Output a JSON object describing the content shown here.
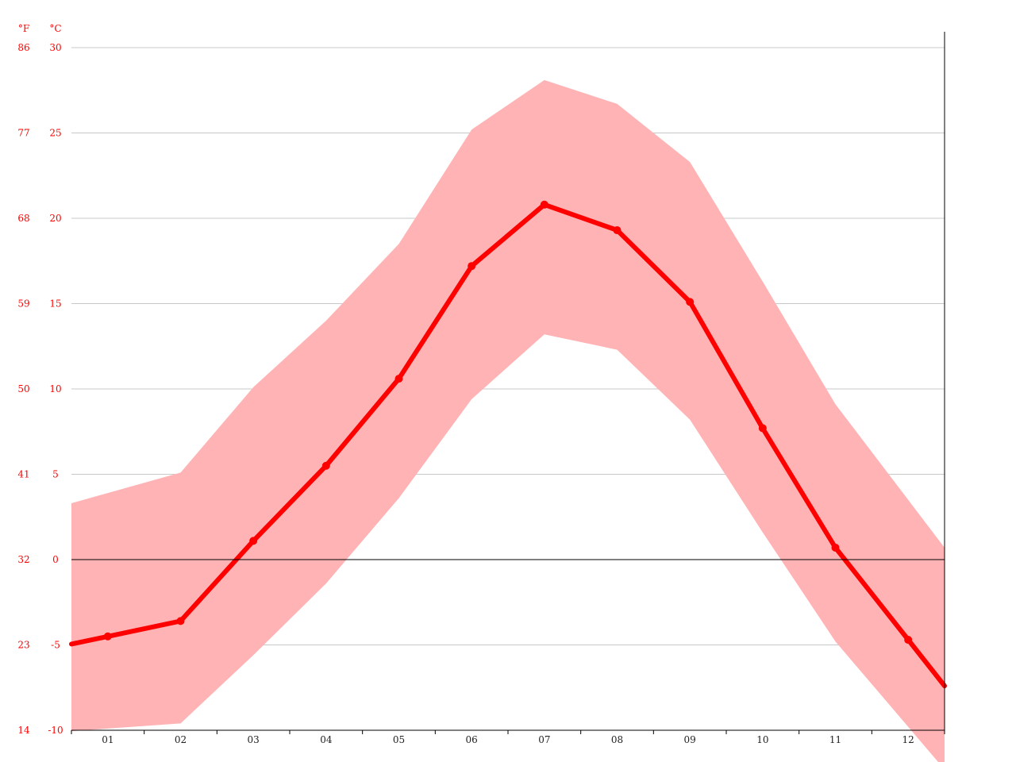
{
  "chart_data": {
    "type": "area",
    "title": "",
    "xlabel": "",
    "ylabel": "",
    "categories": [
      "01",
      "02",
      "03",
      "04",
      "05",
      "06",
      "07",
      "08",
      "09",
      "10",
      "11",
      "12"
    ],
    "y_unit_left": "°F",
    "y_unit_right": "°C",
    "yticks_c": [
      30,
      25,
      20,
      15,
      10,
      5,
      0,
      -5,
      -10
    ],
    "yticks_f": [
      86,
      77,
      68,
      59,
      50,
      41,
      32,
      23,
      14
    ],
    "ylim_c": [
      -10,
      30
    ],
    "grid": true,
    "series": [
      {
        "role": "mean",
        "values": [
          -4.5,
          -3.6,
          1.1,
          5.5,
          10.6,
          17.2,
          20.8,
          19.3,
          15.1,
          7.7,
          0.7,
          -4.7
        ]
      },
      {
        "role": "max",
        "values": [
          3.9,
          5.1,
          10.1,
          14.0,
          18.5,
          25.2,
          28.1,
          26.7,
          23.3,
          16.3,
          9.1,
          3.5
        ]
      },
      {
        "role": "min",
        "values": [
          -9.9,
          -9.6,
          -5.6,
          -1.4,
          3.6,
          9.4,
          13.2,
          12.3,
          8.2,
          1.6,
          -4.8,
          -9.8
        ]
      }
    ],
    "colors": {
      "mean_line": "#ff0000",
      "band_fill": "#ffb3b5",
      "axis_labels": "#ff0000",
      "grid": "#c8c8c8",
      "zero_line": "#000000",
      "axis": "#000000",
      "x_labels": "#222222"
    }
  }
}
